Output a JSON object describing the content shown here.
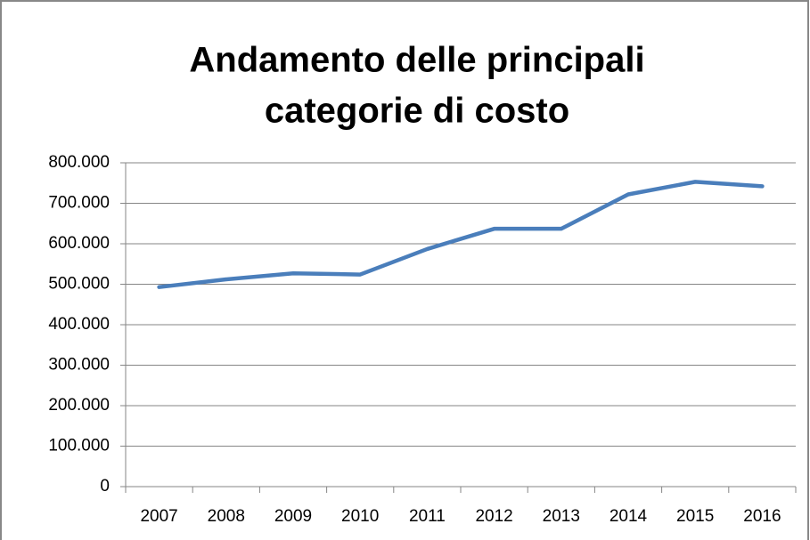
{
  "chart_data": {
    "type": "line",
    "title": [
      "Andamento delle principali",
      "categorie di costo"
    ],
    "categories": [
      "2007",
      "2008",
      "2009",
      "2010",
      "2011",
      "2012",
      "2013",
      "2014",
      "2015",
      "2016"
    ],
    "series": [
      {
        "color": "#4a7ebb",
        "values": [
          493000,
          512000,
          527000,
          524000,
          587000,
          637000,
          637000,
          722000,
          753000,
          742000
        ]
      }
    ],
    "ylim": [
      0,
      800000
    ],
    "yticks": [
      0,
      {
        "value": 100000,
        "label": "100.000"
      },
      {
        "value": 200000,
        "label": "200.000"
      },
      {
        "value": 300000,
        "label": "300.000"
      },
      {
        "value": 400000,
        "label": "400.000"
      },
      {
        "value": 500000,
        "label": "500.000"
      },
      {
        "value": 600000,
        "label": "600.000"
      },
      {
        "value": 700000,
        "label": "700.000"
      },
      {
        "value": 800000,
        "label": "800.000"
      }
    ],
    "grid": true
  }
}
